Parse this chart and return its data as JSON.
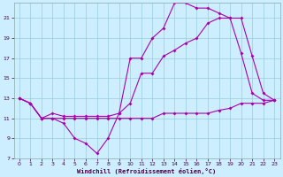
{
  "xlabel": "Windchill (Refroidissement éolien,°C)",
  "bg_color": "#cceeff",
  "line_color": "#aa00aa",
  "grid_color": "#99ccdd",
  "xlim": [
    -0.5,
    23.5
  ],
  "ylim": [
    7,
    22.5
  ],
  "xticks": [
    0,
    1,
    2,
    3,
    4,
    5,
    6,
    7,
    8,
    9,
    10,
    11,
    12,
    13,
    14,
    15,
    16,
    17,
    18,
    19,
    20,
    21,
    22,
    23
  ],
  "yticks": [
    7,
    9,
    11,
    13,
    15,
    17,
    19,
    21
  ],
  "line1_x": [
    0,
    1,
    2,
    3,
    4,
    5,
    6,
    7,
    8,
    9,
    10,
    11,
    12,
    13,
    14,
    15,
    16,
    17,
    18,
    19,
    20,
    21,
    22,
    23
  ],
  "line1_y": [
    13.0,
    12.5,
    11.0,
    11.0,
    10.5,
    9.0,
    8.5,
    7.5,
    9.0,
    11.5,
    17.0,
    17.0,
    19.0,
    20.0,
    22.5,
    22.5,
    22.0,
    22.0,
    21.5,
    21.0,
    17.5,
    13.5,
    12.8,
    12.8
  ],
  "line2_x": [
    0,
    1,
    2,
    3,
    4,
    5,
    6,
    7,
    8,
    9,
    10,
    11,
    12,
    13,
    14,
    15,
    16,
    17,
    18,
    19,
    20,
    21,
    22,
    23
  ],
  "line2_y": [
    13.0,
    12.5,
    11.0,
    11.5,
    11.2,
    11.2,
    11.2,
    11.2,
    11.2,
    11.5,
    12.5,
    15.5,
    15.5,
    17.2,
    17.8,
    18.5,
    19.0,
    20.5,
    21.0,
    21.0,
    21.0,
    17.2,
    13.5,
    12.8
  ],
  "line3_x": [
    0,
    1,
    2,
    3,
    4,
    5,
    6,
    7,
    8,
    9,
    10,
    11,
    12,
    13,
    14,
    15,
    16,
    17,
    18,
    19,
    20,
    21,
    22,
    23
  ],
  "line3_y": [
    13.0,
    12.5,
    11.0,
    11.0,
    11.0,
    11.0,
    11.0,
    11.0,
    11.0,
    11.0,
    11.0,
    11.0,
    11.0,
    11.5,
    11.5,
    11.5,
    11.5,
    11.5,
    11.8,
    12.0,
    12.5,
    12.5,
    12.5,
    12.8
  ]
}
